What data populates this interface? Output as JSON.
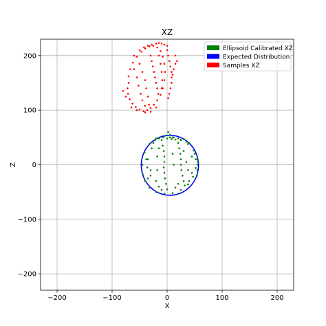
{
  "chart_data": {
    "type": "scatter",
    "title": "XZ",
    "xlabel": "X",
    "ylabel": "Z",
    "xlim": [
      -230,
      230
    ],
    "ylim": [
      -230,
      230
    ],
    "xticks": [
      -200,
      -100,
      0,
      100,
      200
    ],
    "yticks": [
      -200,
      -100,
      0,
      100,
      200
    ],
    "grid": true,
    "legend_position": "top-right",
    "series": [
      {
        "name": "Ellipsoid Calibrated XZ",
        "color": "#008000",
        "center": [
          5,
          -1
        ],
        "radius_x": 50,
        "radius_z": 55,
        "points": [
          [
            -45,
            0
          ],
          [
            -44,
            -18
          ],
          [
            -40,
            -30
          ],
          [
            -32,
            -42
          ],
          [
            -20,
            -50
          ],
          [
            -5,
            -53
          ],
          [
            10,
            -52
          ],
          [
            25,
            -46
          ],
          [
            38,
            -36
          ],
          [
            47,
            -22
          ],
          [
            52,
            -6
          ],
          [
            52,
            10
          ],
          [
            48,
            26
          ],
          [
            38,
            38
          ],
          [
            25,
            46
          ],
          [
            10,
            50
          ],
          [
            -5,
            52
          ],
          [
            -20,
            48
          ],
          [
            -32,
            38
          ],
          [
            -41,
            22
          ],
          [
            -35,
            10
          ],
          [
            -36,
            -5
          ],
          [
            -30,
            -20
          ],
          [
            -28,
            30
          ],
          [
            -22,
            45
          ],
          [
            -15,
            48
          ],
          [
            -8,
            50
          ],
          [
            0,
            48
          ],
          [
            5,
            50
          ],
          [
            8,
            47
          ],
          [
            12,
            50
          ],
          [
            15,
            46
          ],
          [
            20,
            48
          ],
          [
            25,
            45
          ],
          [
            30,
            47
          ],
          [
            35,
            42
          ],
          [
            40,
            40
          ],
          [
            -10,
            45
          ],
          [
            -8,
            35
          ],
          [
            -6,
            25
          ],
          [
            -5,
            15
          ],
          [
            -5,
            5
          ],
          [
            -6,
            -5
          ],
          [
            -5,
            -15
          ],
          [
            -4,
            -25
          ],
          [
            -2,
            -35
          ],
          [
            20,
            40
          ],
          [
            22,
            30
          ],
          [
            24,
            20
          ],
          [
            25,
            10
          ],
          [
            25,
            0
          ],
          [
            26,
            -10
          ],
          [
            28,
            -20
          ],
          [
            30,
            -30
          ],
          [
            32,
            -38
          ],
          [
            55,
            10
          ],
          [
            55,
            0
          ],
          [
            55,
            -10
          ],
          [
            56,
            5
          ],
          [
            54,
            -20
          ],
          [
            -20,
            -30
          ],
          [
            -15,
            -40
          ],
          [
            -10,
            -46
          ],
          [
            0,
            -45
          ],
          [
            15,
            -42
          ],
          [
            20,
            -35
          ],
          [
            -30,
            -10
          ],
          [
            -38,
            10
          ],
          [
            -35,
            -25
          ],
          [
            40,
            -30
          ],
          [
            45,
            -15
          ],
          [
            45,
            15
          ],
          [
            50,
            20
          ],
          [
            2,
            60
          ],
          [
            5,
            55
          ],
          [
            -25,
            40
          ],
          [
            -15,
            30
          ],
          [
            30,
            25
          ],
          [
            35,
            5
          ],
          [
            38,
            -10
          ],
          [
            10,
            20
          ],
          [
            12,
            0
          ],
          [
            -18,
            -10
          ],
          [
            -18,
            15
          ]
        ]
      },
      {
        "name": "Expected Distribution",
        "color": "#0000ff",
        "center": [
          5,
          -1
        ],
        "radius_x": 52,
        "radius_z": 55
      },
      {
        "name": "Samples XZ",
        "color": "#ff0000",
        "center": [
          -35,
          160
        ],
        "points": [
          [
            -70,
            150
          ],
          [
            -72,
            140
          ],
          [
            -71,
            130
          ],
          [
            -68,
            120
          ],
          [
            -63,
            112
          ],
          [
            -57,
            106
          ],
          [
            -50,
            101
          ],
          [
            -43,
            98
          ],
          [
            -36,
            100
          ],
          [
            -30,
            104
          ],
          [
            -24,
            110
          ],
          [
            -18,
            118
          ],
          [
            -12,
            128
          ],
          [
            -8,
            140
          ],
          [
            -5,
            155
          ],
          [
            -4,
            170
          ],
          [
            -5,
            185
          ],
          [
            -8,
            198
          ],
          [
            -12,
            208
          ],
          [
            -18,
            215
          ],
          [
            -25,
            218
          ],
          [
            -32,
            217
          ],
          [
            -40,
            213
          ],
          [
            -47,
            207
          ],
          [
            -55,
            198
          ],
          [
            -62,
            187
          ],
          [
            -67,
            175
          ],
          [
            -70,
            162
          ],
          [
            -60,
            200
          ],
          [
            -50,
            210
          ],
          [
            -42,
            215
          ],
          [
            -35,
            218
          ],
          [
            -28,
            220
          ],
          [
            -20,
            222
          ],
          [
            -15,
            223
          ],
          [
            -10,
            222
          ],
          [
            -5,
            220
          ],
          [
            0,
            218
          ],
          [
            -30,
            200
          ],
          [
            -28,
            190
          ],
          [
            -26,
            180
          ],
          [
            -24,
            170
          ],
          [
            -22,
            160
          ],
          [
            -20,
            150
          ],
          [
            -18,
            140
          ],
          [
            -16,
            130
          ],
          [
            0,
            210
          ],
          [
            2,
            200
          ],
          [
            4,
            190
          ],
          [
            6,
            180
          ],
          [
            8,
            170
          ],
          [
            8,
            160
          ],
          [
            8,
            150
          ],
          [
            6,
            140
          ],
          [
            4,
            130
          ],
          [
            2,
            122
          ],
          [
            -60,
            175
          ],
          [
            -55,
            160
          ],
          [
            -52,
            145
          ],
          [
            -48,
            130
          ],
          [
            -45,
            118
          ],
          [
            -40,
            108
          ],
          [
            -50,
            185
          ],
          [
            -45,
            170
          ],
          [
            -40,
            155
          ],
          [
            -38,
            140
          ],
          [
            -35,
            125
          ],
          [
            -33,
            110
          ],
          [
            -15,
            200
          ],
          [
            -12,
            185
          ],
          [
            -10,
            170
          ],
          [
            -9,
            155
          ],
          [
            -10,
            140
          ],
          [
            -80,
            135
          ],
          [
            -75,
            125
          ],
          [
            -65,
            105
          ],
          [
            -55,
            100
          ],
          [
            -40,
            96
          ],
          [
            -30,
            97
          ],
          [
            -20,
            105
          ],
          [
            15,
            185
          ],
          [
            12,
            175
          ],
          [
            10,
            165
          ],
          [
            15,
            200
          ],
          [
            18,
            190
          ]
        ]
      }
    ]
  }
}
